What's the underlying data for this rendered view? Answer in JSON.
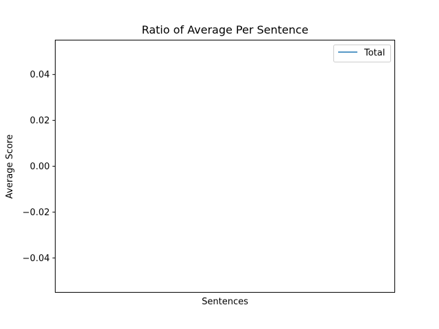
{
  "chart_data": {
    "type": "line",
    "title": "Ratio of Average Per Sentence",
    "xlabel": "Sentences",
    "ylabel": "Average Score",
    "ylim": [
      -0.055,
      0.055
    ],
    "yticks": [
      0.04,
      0.02,
      0.0,
      -0.02,
      -0.04
    ],
    "ytick_labels": [
      "0.04",
      "0.02",
      "0.00",
      "−0.02",
      "−0.04"
    ],
    "x_ticks_visible": false,
    "grid": false,
    "legend_position": "upper right",
    "series": [
      {
        "name": "Total",
        "color": "#1f77b4",
        "x": [],
        "values": []
      }
    ]
  }
}
